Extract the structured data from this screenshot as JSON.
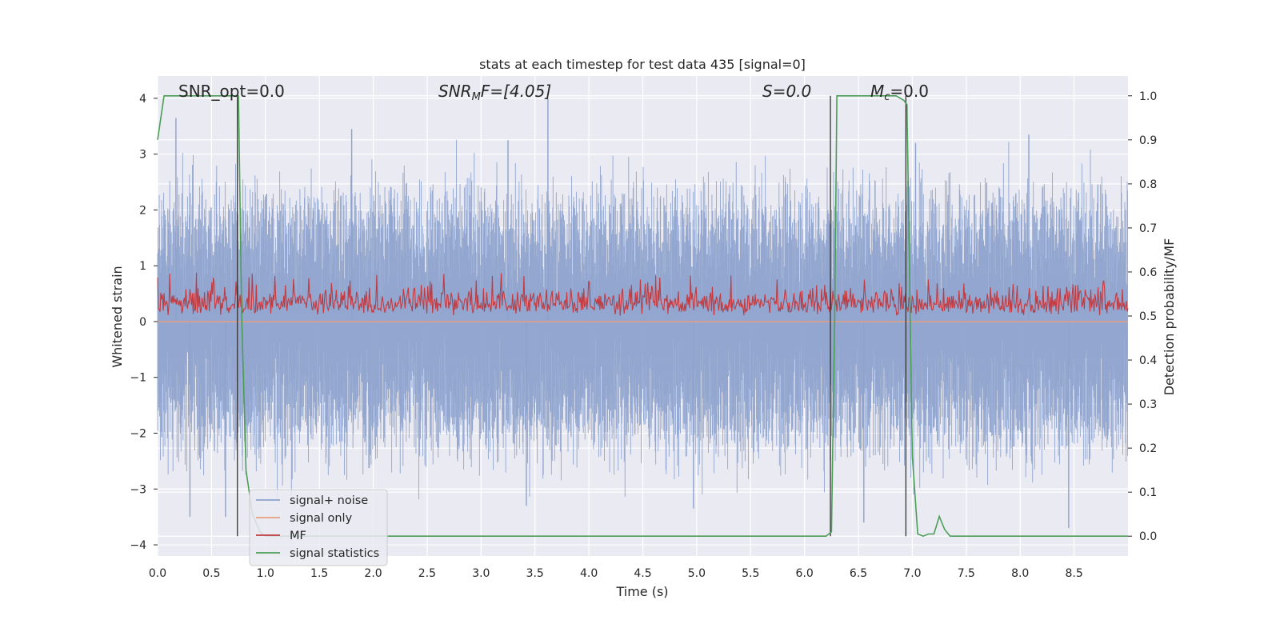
{
  "chart_data": {
    "type": "line",
    "title": "stats at each timestep for test data 435 [signal=0]",
    "xlabel": "Time (s)",
    "ylabel": "Whitened strain",
    "y2label": "Detection probability/MF",
    "xlim": [
      0.0,
      9.0
    ],
    "ylim": [
      -4.2,
      4.4
    ],
    "y2lim": [
      -0.045,
      1.045
    ],
    "x_ticks": [
      "0.0",
      "0.5",
      "1.0",
      "1.5",
      "2.0",
      "2.5",
      "3.0",
      "3.5",
      "4.0",
      "4.5",
      "5.0",
      "5.5",
      "6.0",
      "6.5",
      "7.0",
      "7.5",
      "8.0",
      "8.5"
    ],
    "y_ticks": [
      "−4",
      "−3",
      "−2",
      "−1",
      "0",
      "1",
      "2",
      "3",
      "4"
    ],
    "y2_ticks": [
      "0.0",
      "0.1",
      "0.2",
      "0.3",
      "0.4",
      "0.5",
      "0.6",
      "0.7",
      "0.8",
      "0.9",
      "1.0"
    ],
    "grid": true,
    "legend_position": "lower-left",
    "annotations": {
      "snr_opt": "SNR_opt=0.0",
      "snr_mf_main": "SNR",
      "snr_mf_sub": "M",
      "snr_mf_tail": "F=[4.05]",
      "s": "S=0.0",
      "mc_main": "M",
      "mc_sub": "c",
      "mc_tail": "=0.0"
    },
    "series": [
      {
        "name": "signal+ noise",
        "color": "#8da2cc",
        "description_values": "whitened strain noise, approx range -3.7 to 4.0",
        "envelope": {
          "positive_typical": 1.6,
          "positive_max": 4.0,
          "negative_typical": -1.6,
          "negative_min": -3.7
        }
      },
      {
        "name": "signal only",
        "color": "#e89e7c",
        "x": [
          0.0,
          9.0
        ],
        "y": [
          0.0,
          0.0
        ]
      },
      {
        "name": "MF",
        "color": "#c23b41",
        "axis": "right",
        "envelope": {
          "low": 0.5,
          "high_typical": 0.58,
          "high_max": 0.6
        }
      },
      {
        "name": "signal statistics",
        "color": "#4c9e57",
        "axis": "right",
        "x": [
          0.0,
          0.06,
          0.2,
          0.5,
          0.72,
          0.75,
          0.78,
          0.82,
          0.88,
          0.95,
          1.0,
          2.0,
          4.0,
          6.0,
          6.2,
          6.25,
          6.28,
          6.3,
          6.33,
          6.5,
          6.85,
          6.92,
          6.95,
          7.0,
          7.05,
          7.1,
          7.15,
          7.2,
          7.25,
          7.3,
          7.35,
          7.4,
          8.0,
          9.0
        ],
        "y": [
          0.9,
          1.0,
          1.0,
          1.0,
          1.0,
          1.0,
          0.5,
          0.15,
          0.05,
          0.01,
          0.0,
          0.0,
          0.0,
          0.0,
          0.0,
          0.01,
          0.5,
          1.0,
          1.0,
          1.0,
          1.0,
          0.99,
          0.98,
          0.18,
          0.005,
          0.0,
          0.005,
          0.005,
          0.045,
          0.015,
          0.0,
          0.0,
          0.0,
          0.0
        ]
      }
    ],
    "vertical_markers": [
      {
        "x": 0.74,
        "y2_top": 1.0,
        "color": "#333333"
      },
      {
        "x": 6.24,
        "y2_top": 1.0,
        "color": "#333333"
      },
      {
        "x": 6.94,
        "y2_top": 1.0,
        "color": "#333333"
      }
    ],
    "noise_spikes": [
      {
        "x": 0.17,
        "y": 3.65
      },
      {
        "x": 1.8,
        "y": 3.45
      },
      {
        "x": 3.25,
        "y": 3.25
      },
      {
        "x": 3.62,
        "y": 4.0
      },
      {
        "x": 7.03,
        "y": 3.2
      },
      {
        "x": 8.08,
        "y": 3.35
      },
      {
        "x": 0.3,
        "y": -3.5
      },
      {
        "x": 0.63,
        "y": -3.5
      },
      {
        "x": 3.42,
        "y": -3.3
      },
      {
        "x": 4.97,
        "y": -3.35
      },
      {
        "x": 6.55,
        "y": -3.6
      },
      {
        "x": 8.45,
        "y": -3.7
      }
    ]
  }
}
